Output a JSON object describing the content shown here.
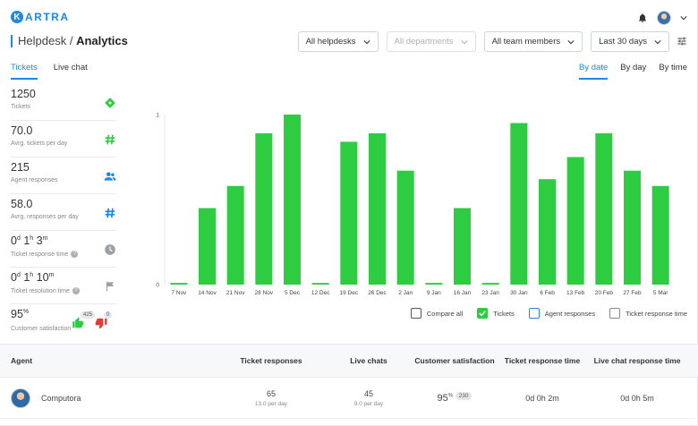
{
  "logo": {
    "mark": "K",
    "text": "ARTRA"
  },
  "title": {
    "section": "Helpdesk",
    "separator": "/",
    "page": "Analytics"
  },
  "filters": [
    {
      "label": "All helpdesks",
      "disabled": false
    },
    {
      "label": "All departments",
      "disabled": true
    },
    {
      "label": "All team members",
      "disabled": false
    },
    {
      "label": "Last 30 days",
      "disabled": false
    }
  ],
  "tabs": [
    "Tickets",
    "Live chat"
  ],
  "granularity": [
    "By date",
    "By day",
    "By time"
  ],
  "stats": [
    {
      "value": "1250",
      "label": "Tickets",
      "icon": "ticket-icon"
    },
    {
      "value": "70.0",
      "label": "Avrg. tickets per day",
      "icon": "hash-icon"
    },
    {
      "value": "215",
      "label": "Agent responses",
      "icon": "people-icon"
    },
    {
      "value": "58.0",
      "label": "Avrg. responses per day",
      "icon": "hash-icon"
    },
    {
      "value_parts": [
        "0",
        "d",
        " 1",
        "h",
        " 3",
        "m"
      ],
      "label": "Ticket response time",
      "icon": "clock-icon"
    },
    {
      "value_parts": [
        "0",
        "d",
        " 1",
        "h",
        " 10",
        "m"
      ],
      "label": "Ticket resolution time",
      "icon": "flag-icon"
    }
  ],
  "satisfaction": {
    "value": "95",
    "unit": "%",
    "label": "Customer satisfaction",
    "likes": "425",
    "dislikes": "0"
  },
  "chart_data": {
    "type": "bar",
    "categories": [
      "7 Nov",
      "14 Nov",
      "21 Nov",
      "28 Nov",
      "5 Dec",
      "12 Dec",
      "19 Dec",
      "26 Dec",
      "2 Jan",
      "9 Jan",
      "16 Jan",
      "23 Jan",
      "30 Jan",
      "6 Feb",
      "13 Feb",
      "20 Feb",
      "27 Feb",
      "5 Mar"
    ],
    "values": [
      0.01,
      0.45,
      0.58,
      0.89,
      1.0,
      0.01,
      0.84,
      0.89,
      0.67,
      0.01,
      0.45,
      0.01,
      0.95,
      0.62,
      0.75,
      0.89,
      0.67,
      0.58
    ],
    "ylim": [
      0,
      1
    ],
    "yticks": [
      "0",
      "1"
    ],
    "color": "#2ecc40"
  },
  "legend": [
    {
      "label": "Compare all",
      "state": "unchecked",
      "color": "#555555"
    },
    {
      "label": "Tickets",
      "state": "checked",
      "color": "#2ecc40"
    },
    {
      "label": "Agent responses",
      "state": "unchecked",
      "color": "#1e88e5"
    },
    {
      "label": "Ticket response time",
      "state": "unchecked",
      "color": "#888888"
    }
  ],
  "table": {
    "headers": [
      "Agent",
      "Ticket responses",
      "Live chats",
      "Customer satisfaction",
      "Ticket response time",
      "Live chat response time"
    ],
    "rows": [
      {
        "agent": "Computora",
        "ticket_responses": "65",
        "ticket_responses_sub": "13.0 per day",
        "live_chats": "45",
        "live_chats_sub": "9.0 per day",
        "satisfaction": "95",
        "satisfaction_unit": "%",
        "satisfaction_count": "230",
        "ticket_response_time": "0d 0h 2m",
        "chat_response_time": "0d 0h 5m"
      }
    ]
  }
}
